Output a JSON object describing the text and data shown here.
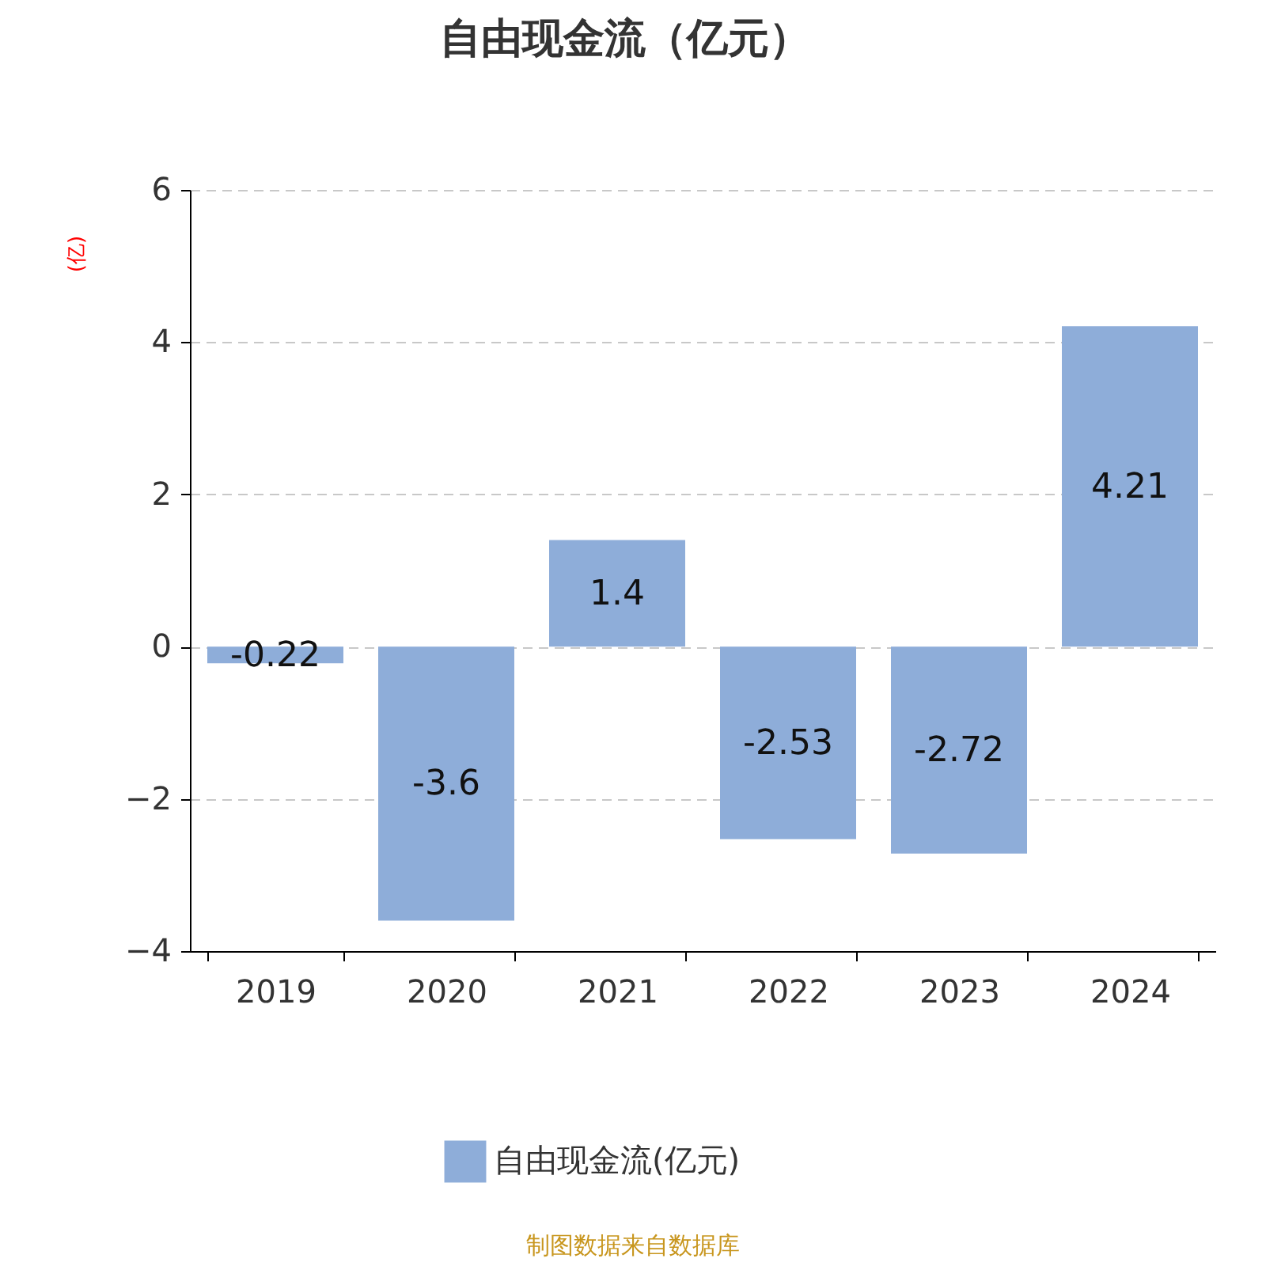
{
  "chart_data": {
    "type": "bar",
    "title": "自由现金流（亿元）",
    "ylabel": "(亿)",
    "categories": [
      "2019",
      "2020",
      "2021",
      "2022",
      "2023",
      "2024"
    ],
    "series": [
      {
        "name": "自由现金流(亿元)",
        "color": "#8eadd9",
        "values": [
          -0.22,
          -3.6,
          1.4,
          -2.53,
          -2.72,
          4.21
        ]
      }
    ],
    "ylim": [
      -4,
      6
    ],
    "yticks": [
      -4,
      -2,
      0,
      2,
      4,
      6
    ],
    "grid": "y",
    "legend": "bottom",
    "data_labels": true,
    "annotations": [
      "制图数据来自数据库"
    ]
  }
}
